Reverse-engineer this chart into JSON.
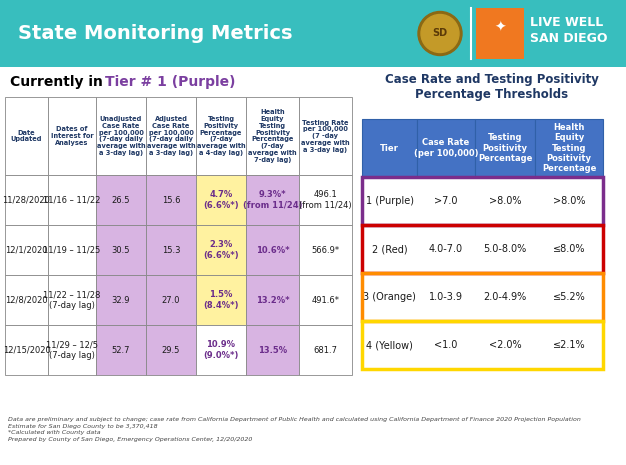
{
  "header_bg": "#38BEBE",
  "header_title": "State Monitoring Metrics",
  "header_title_color": "#FFFFFF",
  "bg_color": "#FFFFFF",
  "left_title_black": "Currently in ",
  "left_title_purple": "Tier # 1 (Purple)",
  "left_title_purple_color": "#7B3FA0",
  "right_title": "Case Rate and Testing Positivity\nPercentage Thresholds",
  "right_title_color": "#1F3864",
  "left_col_headers": [
    "Date\nUpdated",
    "Dates of\nInterest for\nAnalyses",
    "Unadjusted\nCase Rate\nper 100,000\n(7-day daily\naverage with\na 3-day lag)",
    "Adjusted\nCase Rate\nper 100,000\n(7-day daily\naverage with\na 3-day lag)",
    "Testing\nPositivity\nPercentage\n(7-day\naverage with\na 4-day lag)",
    "Health\nEquity\nTesting\nPositivity\nPercentage\n(7-day\naverage with\n7-day lag)",
    "Testing Rate\nper 100,000\n(7 -day\naverage with\na 3-day lag)"
  ],
  "left_data": [
    [
      "11/28/2020",
      "11/16 – 11/22",
      "26.5",
      "15.6",
      "4.7%\n(6.6%*)",
      "9.3%*\n(from 11/24)",
      "496.1\n(from 11/24)"
    ],
    [
      "12/1/2020",
      "11/19 – 11/25",
      "30.5",
      "15.3",
      "2.3%\n(6.6%*)",
      "10.6%*",
      "566.9*"
    ],
    [
      "12/8/2020",
      "11/22 – 11/28\n(7-day lag)",
      "32.9",
      "27.0",
      "1.5%\n(8.4%*)",
      "13.2%*",
      "491.6*"
    ],
    [
      "12/15/2020",
      "11/29 – 12/5\n(7-day lag)",
      "52.7",
      "29.5",
      "10.9%\n(9.0%*)",
      "13.5%",
      "681.7"
    ]
  ],
  "cell_purple": "#D8B4E2",
  "cell_yellow": "#FFF2A0",
  "cell_white": "#FFFFFF",
  "right_col_headers": [
    "Tier",
    "Case Rate\n(per 100,000)",
    "Testing\nPositivity\nPercentage",
    "Health\nEquity\nTesting\nPositivity\nPercentage"
  ],
  "right_header_bg": "#4472C4",
  "right_header_color": "#FFFFFF",
  "right_data": [
    [
      "1 (Purple)",
      ">7.0",
      ">8.0%",
      ">8.0%"
    ],
    [
      "2 (Red)",
      "4.0-7.0",
      "5.0-8.0%",
      "≤8.0%"
    ],
    [
      "3 (Orange)",
      "1.0-3.9",
      "2.0-4.9%",
      "≤5.2%"
    ],
    [
      "4 (Yellow)",
      "<1.0",
      "<2.0%",
      "≤2.1%"
    ]
  ],
  "right_row_borders": [
    "#7B2D8B",
    "#CC0000",
    "#FF8C00",
    "#FFD700"
  ],
  "footnote": "Data are preliminary and subject to change; case rate from California Department of Public Health and calculated using California Department of Finance 2020 Projection Population\nEstimate for San Diego County to be 3,370,418\n*Calculated with County data\nPrepared by County of San Diego, Emergency Operations Center, 12/20/2020",
  "logo_orange_bg": "#F07820",
  "logo_text_color": "#FFFFFF",
  "logo_line1": "LIVE WELL",
  "logo_line2": "SAN DIEGO"
}
